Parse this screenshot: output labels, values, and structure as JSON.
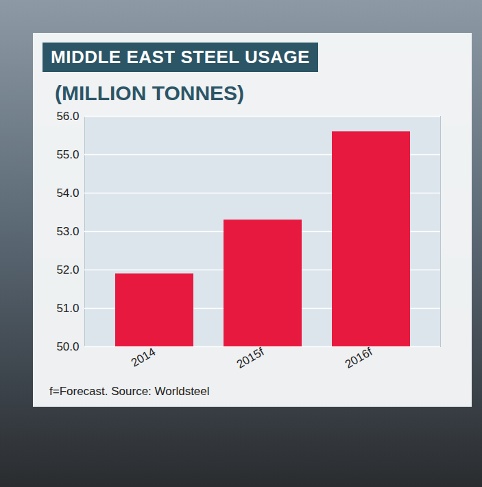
{
  "chart_data": {
    "type": "bar",
    "title": "MIDDLE EAST STEEL USAGE",
    "subtitle": "(MILLION TONNES)",
    "annotations": [
      "f=Forecast. Source: Worldsteel"
    ],
    "categories": [
      "2014",
      "2015f",
      "2016f"
    ],
    "values": [
      51.9,
      53.3,
      55.6
    ],
    "color": "#e8193f",
    "ylim": [
      50,
      56
    ],
    "yticks": [
      50,
      51,
      52,
      53,
      54,
      55,
      56
    ],
    "grid": true
  }
}
